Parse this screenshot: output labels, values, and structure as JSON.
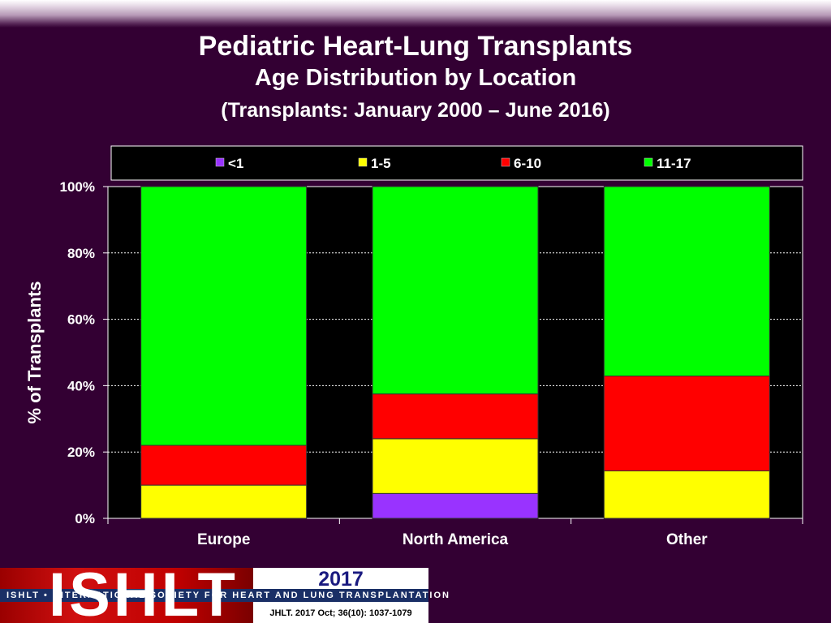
{
  "header": {
    "title": "Pediatric Heart-Lung Transplants",
    "subtitle": "Age Distribution by Location",
    "subtitle2": "(Transplants: January 2000 – June 2016)"
  },
  "chart_data": {
    "type": "bar",
    "stacked": true,
    "categories": [
      "Europe",
      "North America",
      "Other"
    ],
    "series": [
      {
        "name": "<1",
        "color": "#9933ff",
        "values": [
          0,
          7.5,
          0
        ]
      },
      {
        "name": "1-5",
        "color": "#ffff00",
        "values": [
          10,
          16.5,
          14.3
        ]
      },
      {
        "name": "6-10",
        "color": "#ff0000",
        "values": [
          12,
          13.5,
          28.6
        ]
      },
      {
        "name": "11-17",
        "color": "#00ff00",
        "values": [
          78,
          62.5,
          57.1
        ]
      }
    ],
    "ylabel": "% of Transplants",
    "xlabel": "",
    "ylim": [
      0,
      100
    ],
    "yticks": [
      "0%",
      "20%",
      "40%",
      "60%",
      "80%",
      "100%"
    ],
    "grid": true,
    "legend_position": "top"
  },
  "footer": {
    "logo_text": "ISHLT",
    "band_text": "ISHLT • INTERNATIONAL SOCIETY FOR HEART AND LUNG TRANSPLANTATION",
    "year": "2017",
    "citation": "JHLT. 2017 Oct; 36(10): 1037-1079"
  },
  "colors": {
    "background": "#330033",
    "plot_background": "#000000",
    "text": "#ffffff"
  }
}
